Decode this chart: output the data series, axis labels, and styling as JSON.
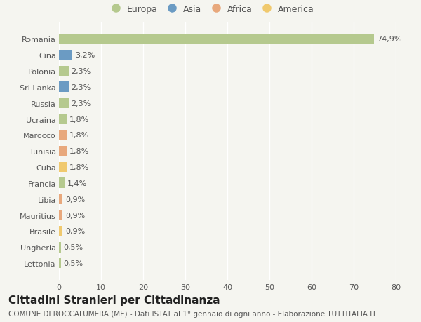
{
  "countries": [
    "Romania",
    "Cina",
    "Polonia",
    "Sri Lanka",
    "Russia",
    "Ucraina",
    "Marocco",
    "Tunisia",
    "Cuba",
    "Francia",
    "Libia",
    "Mauritius",
    "Brasile",
    "Ungheria",
    "Lettonia"
  ],
  "values": [
    74.9,
    3.2,
    2.3,
    2.3,
    2.3,
    1.8,
    1.8,
    1.8,
    1.8,
    1.4,
    0.9,
    0.9,
    0.9,
    0.5,
    0.5
  ],
  "labels": [
    "74,9%",
    "3,2%",
    "2,3%",
    "2,3%",
    "2,3%",
    "1,8%",
    "1,8%",
    "1,8%",
    "1,8%",
    "1,4%",
    "0,9%",
    "0,9%",
    "0,9%",
    "0,5%",
    "0,5%"
  ],
  "continents": [
    "Europa",
    "Asia",
    "Europa",
    "Asia",
    "Europa",
    "Europa",
    "Africa",
    "Africa",
    "America",
    "Europa",
    "Africa",
    "Africa",
    "America",
    "Europa",
    "Europa"
  ],
  "continent_colors": {
    "Europa": "#b5c98e",
    "Asia": "#6b9bc3",
    "Africa": "#e8a87c",
    "America": "#f0c96e"
  },
  "legend_order": [
    "Europa",
    "Asia",
    "Africa",
    "America"
  ],
  "legend_colors": [
    "#b5c98e",
    "#6b9bc3",
    "#e8a87c",
    "#f0c96e"
  ],
  "title": "Cittadini Stranieri per Cittadinanza",
  "subtitle": "COMUNE DI ROCCALUMERA (ME) - Dati ISTAT al 1° gennaio di ogni anno - Elaborazione TUTTITALIA.IT",
  "xlim": [
    0,
    80
  ],
  "xticks": [
    0,
    10,
    20,
    30,
    40,
    50,
    60,
    70,
    80
  ],
  "background_color": "#f5f5f0",
  "grid_color": "#ffffff",
  "bar_height": 0.65,
  "title_fontsize": 11,
  "subtitle_fontsize": 7.5,
  "label_fontsize": 8,
  "tick_fontsize": 8,
  "legend_fontsize": 9
}
